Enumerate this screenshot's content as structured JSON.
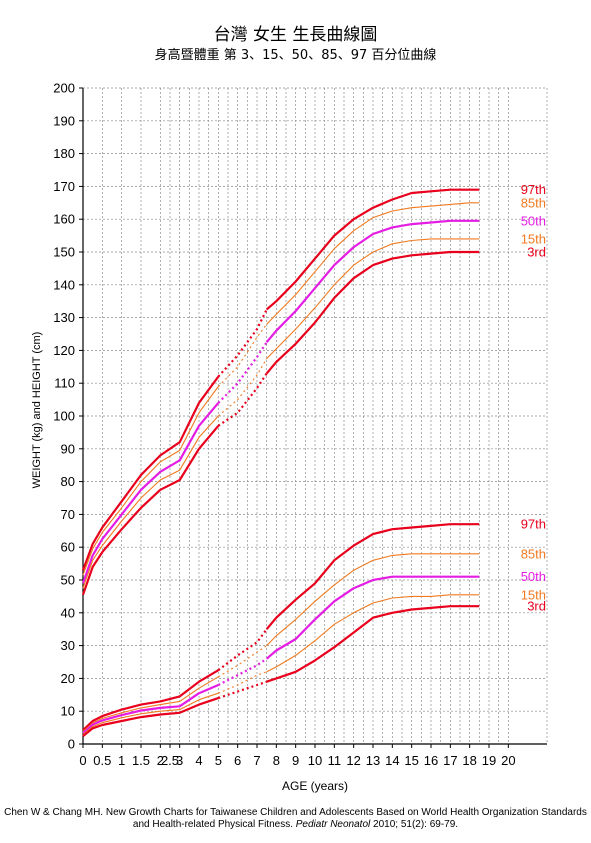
{
  "header": {
    "title": "台灣 女生 生長曲線圖",
    "subtitle": "身高暨體重 第 3、15、50、85、97 百分位曲線"
  },
  "citation": {
    "pre": "Chen W & Chang MH. New Growth Charts for Taiwanese Children and Adolescents Based on World Health Organization Standards and Health-related Physical Fitness. ",
    "journal": "Pediatr Neonatol",
    "post": " 2010; 51(2): 69-79."
  },
  "chart_data": {
    "type": "line",
    "xlabel": "AGE (years)",
    "ylabel": "WEIGHT (kg) and HEIGHT (cm)",
    "xlim": [
      0,
      20
    ],
    "ylim": [
      0,
      200
    ],
    "xticks": [
      "0",
      "0.5",
      "1",
      "1.5",
      "2",
      "2.5",
      "3",
      "4",
      "5",
      "6",
      "7",
      "8",
      "9",
      "10",
      "11",
      "12",
      "13",
      "14",
      "15",
      "16",
      "17",
      "18",
      "19",
      "20"
    ],
    "yticks": [
      "0",
      "10",
      "20",
      "30",
      "40",
      "50",
      "60",
      "70",
      "80",
      "90",
      "100",
      "110",
      "120",
      "130",
      "140",
      "150",
      "160",
      "170",
      "180",
      "190",
      "200"
    ],
    "grid": true,
    "note": "x-axis: 0–2 years in half-year steps, 2–20 years in one-year steps; dotted segments between 5 and 7.5 years",
    "height_series": [
      {
        "name": "97th",
        "color": "#e8001c",
        "width": 2.2,
        "label_y": 169,
        "x": [
          0,
          0.25,
          0.5,
          1,
          1.5,
          2,
          3,
          4,
          5,
          6,
          7,
          7.5,
          8,
          9,
          10,
          11,
          12,
          13,
          14,
          15,
          16,
          17,
          18,
          18.5
        ],
        "y": [
          53,
          61,
          66,
          74,
          82,
          88,
          92,
          104,
          112,
          118.5,
          126.5,
          132.5,
          135,
          141,
          148,
          155,
          160,
          163.5,
          166,
          168,
          168.5,
          169,
          169,
          169
        ]
      },
      {
        "name": "85th",
        "color": "#f07a20",
        "width": 1.1,
        "label_y": 165,
        "x": [
          0,
          0.25,
          0.5,
          1,
          1.5,
          2,
          3,
          4,
          5,
          6,
          7,
          7.5,
          8,
          9,
          10,
          11,
          12,
          13,
          14,
          15,
          16,
          17,
          18,
          18.5
        ],
        "y": [
          51.5,
          59.5,
          64.5,
          72,
          80,
          86,
          89.5,
          101,
          109,
          115,
          124,
          128,
          131,
          137,
          144,
          151,
          156.5,
          160.5,
          162.5,
          163.5,
          164,
          164.5,
          165,
          165
        ]
      },
      {
        "name": "50th",
        "color": "#e41ce4",
        "width": 2.2,
        "label_y": 159.5,
        "x": [
          0,
          0.25,
          0.5,
          1,
          1.5,
          2,
          3,
          4,
          5,
          6,
          7,
          7.5,
          8,
          9,
          10,
          11,
          12,
          13,
          14,
          15,
          16,
          17,
          18,
          18.5
        ],
        "y": [
          49,
          57.5,
          62.5,
          70,
          77.5,
          83,
          86.5,
          97,
          104,
          110,
          118,
          122.5,
          126,
          132,
          139,
          146,
          151.5,
          155.5,
          157.5,
          158.5,
          159,
          159.5,
          159.5,
          159.5
        ]
      },
      {
        "name": "15th",
        "color": "#f07a20",
        "width": 1.1,
        "label_y": 154,
        "x": [
          0,
          0.25,
          0.5,
          1,
          1.5,
          2,
          3,
          4,
          5,
          6,
          7,
          7.5,
          8,
          9,
          10,
          11,
          12,
          13,
          14,
          15,
          16,
          17,
          18,
          18.5
        ],
        "y": [
          47.5,
          56,
          60.5,
          68,
          75,
          80.5,
          83.5,
          93.5,
          100,
          105,
          112.5,
          117.5,
          120.5,
          126.5,
          133,
          140,
          146,
          150,
          152.5,
          153.5,
          154,
          154,
          154,
          154
        ]
      },
      {
        "name": "3rd",
        "color": "#e8001c",
        "width": 2.2,
        "label_y": 150,
        "x": [
          0,
          0.25,
          0.5,
          1,
          1.5,
          2,
          3,
          4,
          5,
          6,
          7,
          7.5,
          8,
          9,
          10,
          11,
          12,
          13,
          14,
          15,
          16,
          17,
          18,
          18.5
        ],
        "y": [
          45.5,
          54,
          58.5,
          65.5,
          72,
          77.5,
          80.5,
          90,
          97,
          101,
          108.5,
          113,
          116.5,
          122,
          128.5,
          136,
          142,
          146,
          148,
          149,
          149.5,
          150,
          150,
          150
        ]
      }
    ],
    "weight_series": [
      {
        "name": "97th",
        "color": "#e8001c",
        "width": 2.2,
        "label_y": 67,
        "x": [
          0,
          0.25,
          0.5,
          1,
          1.5,
          2,
          3,
          4,
          5,
          6,
          7,
          7.5,
          8,
          9,
          10,
          11,
          12,
          13,
          14,
          15,
          16,
          17,
          18,
          18.5
        ],
        "y": [
          4.2,
          7,
          8.5,
          10.5,
          12,
          13,
          14.5,
          19,
          22.5,
          27,
          31,
          35,
          38.5,
          44,
          49,
          56,
          60.5,
          64,
          65.5,
          66,
          66.5,
          67,
          67,
          67
        ]
      },
      {
        "name": "85th",
        "color": "#f07a20",
        "width": 1.1,
        "label_y": 58,
        "x": [
          0,
          0.25,
          0.5,
          1,
          1.5,
          2,
          3,
          4,
          5,
          6,
          7,
          7.5,
          8,
          9,
          10,
          11,
          12,
          13,
          14,
          15,
          16,
          17,
          18,
          18.5
        ],
        "y": [
          3.8,
          6.4,
          7.8,
          9.5,
          11,
          12,
          13,
          17,
          20.5,
          24,
          28,
          30,
          33,
          38,
          43.5,
          48.5,
          53,
          56,
          57.5,
          58,
          58,
          58,
          58,
          58
        ]
      },
      {
        "name": "50th",
        "color": "#e41ce4",
        "width": 2.2,
        "label_y": 51,
        "x": [
          0,
          0.25,
          0.5,
          1,
          1.5,
          2,
          3,
          4,
          5,
          6,
          7,
          7.5,
          8,
          9,
          10,
          11,
          12,
          13,
          14,
          15,
          16,
          17,
          18,
          18.5
        ],
        "y": [
          3.3,
          5.9,
          7.2,
          8.8,
          10.2,
          11,
          11.5,
          15.5,
          18,
          21,
          24,
          26,
          28.5,
          32,
          38,
          43.5,
          47.5,
          50,
          51,
          51,
          51,
          51,
          51,
          51
        ]
      },
      {
        "name": "15th",
        "color": "#f07a20",
        "width": 1.1,
        "label_y": 45.5,
        "x": [
          0,
          0.25,
          0.5,
          1,
          1.5,
          2,
          3,
          4,
          5,
          6,
          7,
          7.5,
          8,
          9,
          10,
          11,
          12,
          13,
          14,
          15,
          16,
          17,
          18,
          18.5
        ],
        "y": [
          2.9,
          5.3,
          6.5,
          8,
          9.2,
          10,
          10.5,
          13.5,
          15.5,
          18,
          21,
          22,
          23.5,
          27,
          31.5,
          36.5,
          40,
          43,
          44.5,
          45,
          45,
          45.5,
          45.5,
          45.5
        ]
      },
      {
        "name": "3rd",
        "color": "#e8001c",
        "width": 2.2,
        "label_y": 42,
        "x": [
          0,
          0.25,
          0.5,
          1,
          1.5,
          2,
          3,
          4,
          5,
          6,
          7,
          7.5,
          8,
          9,
          10,
          11,
          12,
          13,
          14,
          15,
          16,
          17,
          18,
          18.5
        ],
        "y": [
          2.4,
          4.8,
          5.8,
          7,
          8.2,
          9,
          9.5,
          12,
          14,
          16,
          18,
          19,
          20,
          22,
          25.5,
          29.5,
          34,
          38.5,
          40,
          41,
          41.5,
          42,
          42,
          42
        ]
      }
    ]
  }
}
